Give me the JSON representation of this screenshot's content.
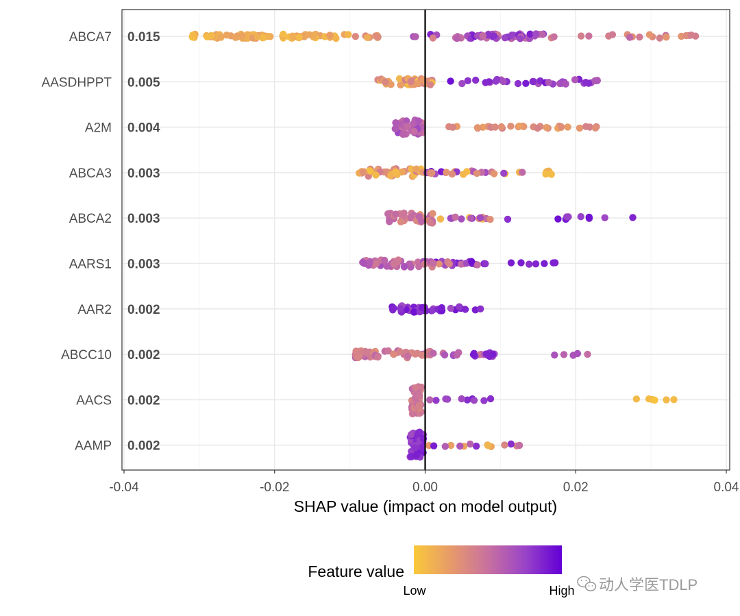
{
  "chart_data": {
    "type": "scatter",
    "subtype": "shap-beeswarm",
    "xlabel": "SHAP value (impact on model output)",
    "xlim": [
      -0.04,
      0.04
    ],
    "x_ticks": [
      -0.04,
      -0.02,
      0.0,
      0.02,
      0.04
    ],
    "x_tick_labels": [
      "-0.04",
      "-0.02",
      "0.00",
      "0.02",
      "0.04"
    ],
    "grid": true,
    "zero_line": 0.0,
    "features": [
      {
        "name": "ABCA7",
        "mean_abs_shap": "0.015",
        "clusters": [
          {
            "from": -0.031,
            "to": -0.01,
            "n": 70,
            "spread": 0.12,
            "c0": 0.05,
            "c1": 0.25
          },
          {
            "from": -0.01,
            "to": -0.005,
            "n": 8,
            "spread": 0.1,
            "c0": 0.15,
            "c1": 0.35
          },
          {
            "from": -0.002,
            "to": 0.002,
            "n": 5,
            "spread": 0.12,
            "c0": 0.3,
            "c1": 0.95
          },
          {
            "from": 0.004,
            "to": 0.016,
            "n": 55,
            "spread": 0.14,
            "c0": 0.45,
            "c1": 0.9
          },
          {
            "from": 0.016,
            "to": 0.036,
            "n": 20,
            "spread": 0.1,
            "c0": 0.25,
            "c1": 0.55
          }
        ]
      },
      {
        "name": "AASDHPPT",
        "mean_abs_shap": "0.005",
        "clusters": [
          {
            "from": -0.007,
            "to": 0.001,
            "n": 35,
            "spread": 0.18,
            "c0": 0.05,
            "c1": 0.45
          },
          {
            "from": 0.003,
            "to": 0.024,
            "n": 35,
            "spread": 0.14,
            "c0": 0.6,
            "c1": 0.95
          }
        ]
      },
      {
        "name": "A2M",
        "mean_abs_shap": "0.004",
        "clusters": [
          {
            "from": -0.004,
            "to": 0.0,
            "n": 35,
            "spread": 0.4,
            "c0": 0.45,
            "c1": 0.75
          },
          {
            "from": 0.003,
            "to": 0.023,
            "n": 32,
            "spread": 0.06,
            "c0": 0.2,
            "c1": 0.4
          }
        ]
      },
      {
        "name": "ABCA3",
        "mean_abs_shap": "0.003",
        "clusters": [
          {
            "from": -0.009,
            "to": 0.0,
            "n": 40,
            "spread": 0.22,
            "c0": 0.05,
            "c1": 0.45
          },
          {
            "from": 0.0,
            "to": 0.013,
            "n": 25,
            "spread": 0.1,
            "c0": 0.05,
            "c1": 0.95
          },
          {
            "from": 0.016,
            "to": 0.018,
            "n": 8,
            "spread": 0.1,
            "c0": 0.05,
            "c1": 0.15
          }
        ]
      },
      {
        "name": "ABCA2",
        "mean_abs_shap": "0.003",
        "clusters": [
          {
            "from": -0.005,
            "to": 0.001,
            "n": 45,
            "spread": 0.3,
            "c0": 0.3,
            "c1": 0.6
          },
          {
            "from": 0.001,
            "to": 0.012,
            "n": 18,
            "spread": 0.08,
            "c0": 0.05,
            "c1": 0.95
          },
          {
            "from": 0.016,
            "to": 0.028,
            "n": 10,
            "spread": 0.08,
            "c0": 0.7,
            "c1": 0.95
          }
        ]
      },
      {
        "name": "AARS1",
        "mean_abs_shap": "0.003",
        "clusters": [
          {
            "from": -0.009,
            "to": 0.001,
            "n": 50,
            "spread": 0.2,
            "c0": 0.4,
            "c1": 0.7
          },
          {
            "from": 0.001,
            "to": 0.008,
            "n": 25,
            "spread": 0.12,
            "c0": 0.3,
            "c1": 0.95
          },
          {
            "from": 0.011,
            "to": 0.018,
            "n": 7,
            "spread": 0.06,
            "c0": 0.8,
            "c1": 0.95
          }
        ]
      },
      {
        "name": "AAR2",
        "mean_abs_shap": "0.002",
        "clusters": [
          {
            "from": -0.005,
            "to": 0.0,
            "n": 25,
            "spread": 0.18,
            "c0": 0.7,
            "c1": 0.95
          },
          {
            "from": 0.0,
            "to": 0.008,
            "n": 15,
            "spread": 0.12,
            "c0": 0.7,
            "c1": 0.95
          }
        ]
      },
      {
        "name": "ABCC10",
        "mean_abs_shap": "0.002",
        "clusters": [
          {
            "from": -0.01,
            "to": 0.001,
            "n": 55,
            "spread": 0.2,
            "c0": 0.3,
            "c1": 0.6
          },
          {
            "from": 0.001,
            "to": 0.01,
            "n": 20,
            "spread": 0.12,
            "c0": 0.4,
            "c1": 0.95
          },
          {
            "from": 0.015,
            "to": 0.024,
            "n": 5,
            "spread": 0.06,
            "c0": 0.5,
            "c1": 0.7
          }
        ]
      },
      {
        "name": "AACS",
        "mean_abs_shap": "0.002",
        "clusters": [
          {
            "from": -0.0018,
            "to": -0.0005,
            "n": 45,
            "spread": 0.85,
            "c0": 0.35,
            "c1": 0.55
          },
          {
            "from": 0.0,
            "to": 0.009,
            "n": 10,
            "spread": 0.06,
            "c0": 0.6,
            "c1": 0.9
          },
          {
            "from": 0.028,
            "to": 0.037,
            "n": 6,
            "spread": 0.05,
            "c0": 0.0,
            "c1": 0.1
          }
        ]
      },
      {
        "name": "AAMP",
        "mean_abs_shap": "0.002",
        "clusters": [
          {
            "from": -0.002,
            "to": -0.0002,
            "n": 45,
            "spread": 0.75,
            "c0": 0.7,
            "c1": 0.9
          },
          {
            "from": 0.0,
            "to": 0.013,
            "n": 15,
            "spread": 0.08,
            "c0": 0.1,
            "c1": 0.95
          }
        ]
      }
    ],
    "legend": {
      "title": "Feature value",
      "low_label": "Low",
      "high_label": "High",
      "placement": "bottom",
      "colors": [
        "#f9c93a",
        "#e79a6a",
        "#c871a0",
        "#9a44c8",
        "#6200d6"
      ]
    }
  },
  "watermark": {
    "text": "动人学医TDLP"
  }
}
